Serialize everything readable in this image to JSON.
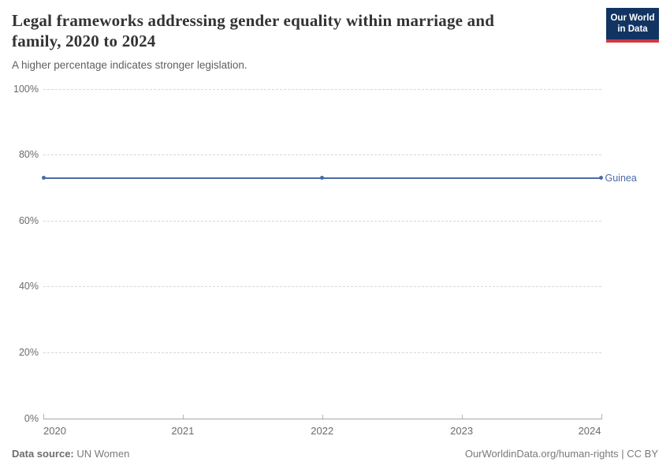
{
  "header": {
    "title_lines": [
      "Legal frameworks addressing gender equality within marriage and",
      "family, 2020 to 2024"
    ],
    "subtitle": "A higher percentage indicates stronger legislation.",
    "logo": {
      "line1": "Our World",
      "line2": "in Data"
    }
  },
  "theme": {
    "logo_bg": "#123462",
    "logo_accent": "#cf3a40",
    "series_blue": "#4a6ba6"
  },
  "chart_data": {
    "type": "line",
    "title": "Legal frameworks addressing gender equality within marriage and family, 2020 to 2024",
    "subtitle": "A higher percentage indicates stronger legislation.",
    "x": [
      2020,
      2022,
      2024
    ],
    "series": [
      {
        "name": "Guinea",
        "values": [
          73,
          73,
          73
        ],
        "color": "#4a6ba6"
      }
    ],
    "xlabel": "",
    "ylabel": "",
    "xlim": [
      2020,
      2024
    ],
    "ylim": [
      0,
      100
    ],
    "yticks": [
      {
        "value": 0,
        "label": "0%"
      },
      {
        "value": 20,
        "label": "20%"
      },
      {
        "value": 40,
        "label": "40%"
      },
      {
        "value": 60,
        "label": "60%"
      },
      {
        "value": 80,
        "label": "80%"
      },
      {
        "value": 100,
        "label": "100%"
      }
    ],
    "xticks": [
      {
        "value": 2020,
        "label": "2020"
      },
      {
        "value": 2021,
        "label": "2021"
      },
      {
        "value": 2022,
        "label": "2022"
      },
      {
        "value": 2023,
        "label": "2023"
      },
      {
        "value": 2024,
        "label": "2024"
      }
    ],
    "grid": true,
    "legend_position": "end-of-line"
  },
  "footer": {
    "source_label": "Data source:",
    "source_value": "UN Women",
    "license": "OurWorldinData.org/human-rights | CC BY"
  }
}
